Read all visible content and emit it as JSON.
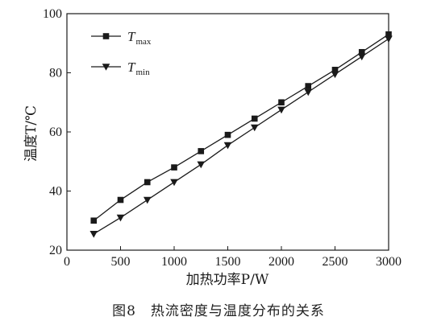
{
  "caption": "图8　热流密度与温度分布的关系",
  "chart_data": {
    "type": "line",
    "xlabel": "加热功率P/W",
    "ylabel": "温度T/℃",
    "xlim": [
      0,
      3000
    ],
    "ylim": [
      20,
      100
    ],
    "xticks": [
      0,
      500,
      1000,
      1500,
      2000,
      2500,
      3000
    ],
    "yticks": [
      20,
      40,
      60,
      80,
      100
    ],
    "grid": false,
    "legend_position": "top-left",
    "x": [
      250,
      500,
      750,
      1000,
      1250,
      1500,
      1750,
      2000,
      2250,
      2500,
      2750,
      3000
    ],
    "series": [
      {
        "name": "T",
        "subscript": "max",
        "marker": "square",
        "values": [
          30,
          37,
          43,
          48,
          53.5,
          59,
          64.5,
          70,
          75.5,
          81,
          87,
          93
        ]
      },
      {
        "name": "T",
        "subscript": "min",
        "marker": "triangle-down",
        "values": [
          25.5,
          31,
          37,
          43,
          49,
          55.5,
          61.5,
          67.5,
          73.5,
          79.5,
          85.5,
          91.5
        ]
      }
    ]
  }
}
